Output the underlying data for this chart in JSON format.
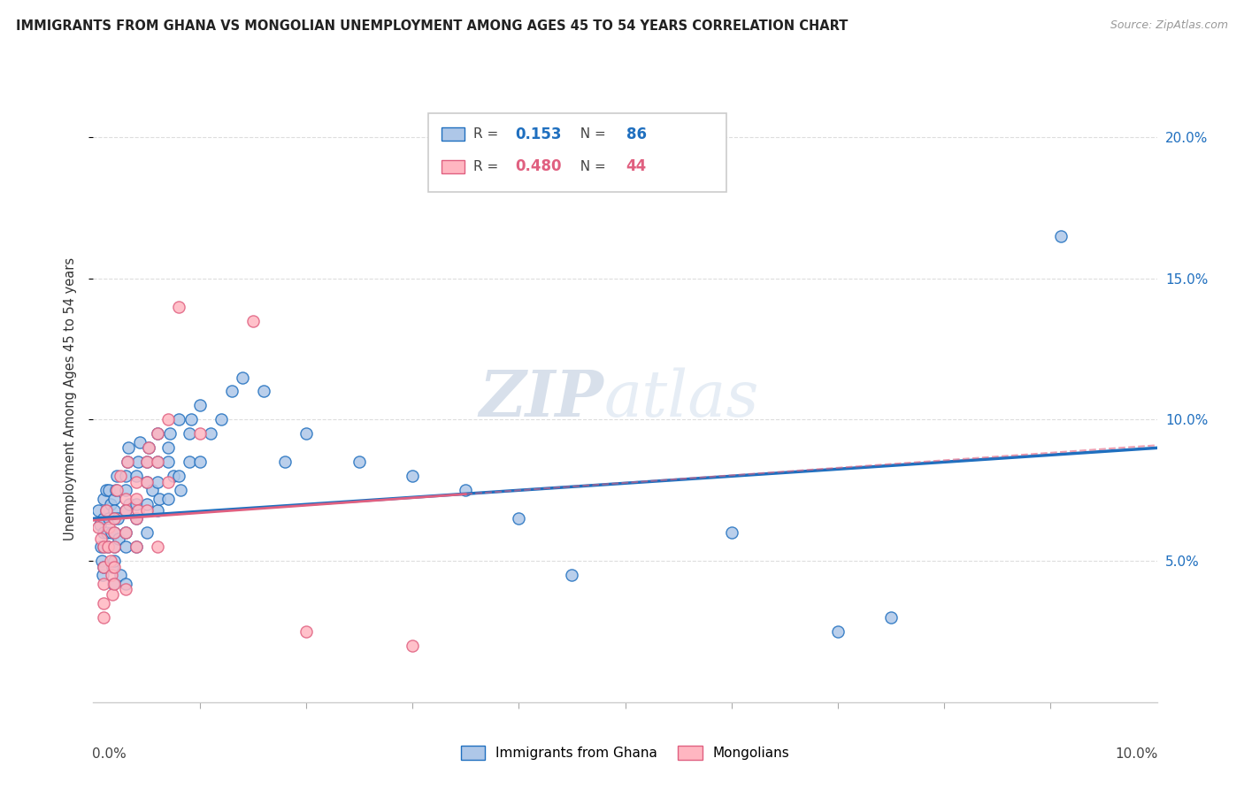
{
  "title": "IMMIGRANTS FROM GHANA VS MONGOLIAN UNEMPLOYMENT AMONG AGES 45 TO 54 YEARS CORRELATION CHART",
  "source": "Source: ZipAtlas.com",
  "ylabel": "Unemployment Among Ages 45 to 54 years",
  "legend_label1": "Immigrants from Ghana",
  "legend_label2": "Mongolians",
  "R1": "0.153",
  "N1": "86",
  "R2": "0.480",
  "N2": "44",
  "color1": "#aec7e8",
  "color2": "#ffb6c1",
  "trendline1_color": "#1f6fbf",
  "trendline2_color": "#e06080",
  "ghana_x": [
    0.0005,
    0.0006,
    0.0007,
    0.0008,
    0.0009,
    0.001,
    0.001,
    0.001,
    0.001,
    0.001,
    0.0012,
    0.0012,
    0.0013,
    0.0014,
    0.0015,
    0.0015,
    0.0016,
    0.0017,
    0.0018,
    0.0019,
    0.002,
    0.002,
    0.002,
    0.002,
    0.002,
    0.002,
    0.0021,
    0.0022,
    0.0023,
    0.0024,
    0.0025,
    0.003,
    0.003,
    0.003,
    0.003,
    0.003,
    0.003,
    0.0032,
    0.0033,
    0.0034,
    0.004,
    0.004,
    0.004,
    0.004,
    0.0042,
    0.0044,
    0.005,
    0.005,
    0.005,
    0.005,
    0.0052,
    0.0055,
    0.006,
    0.006,
    0.006,
    0.006,
    0.0062,
    0.007,
    0.007,
    0.007,
    0.0072,
    0.0075,
    0.008,
    0.008,
    0.0082,
    0.009,
    0.009,
    0.0092,
    0.01,
    0.01,
    0.011,
    0.012,
    0.013,
    0.014,
    0.016,
    0.018,
    0.02,
    0.025,
    0.03,
    0.035,
    0.04,
    0.045,
    0.06,
    0.07,
    0.075,
    0.091
  ],
  "ghana_y": [
    0.068,
    0.063,
    0.055,
    0.05,
    0.045,
    0.072,
    0.065,
    0.06,
    0.055,
    0.048,
    0.075,
    0.068,
    0.06,
    0.055,
    0.075,
    0.065,
    0.07,
    0.06,
    0.048,
    0.042,
    0.072,
    0.068,
    0.065,
    0.06,
    0.055,
    0.05,
    0.075,
    0.08,
    0.065,
    0.058,
    0.045,
    0.075,
    0.08,
    0.068,
    0.06,
    0.055,
    0.042,
    0.085,
    0.09,
    0.07,
    0.08,
    0.07,
    0.065,
    0.055,
    0.085,
    0.092,
    0.085,
    0.078,
    0.07,
    0.06,
    0.09,
    0.075,
    0.095,
    0.085,
    0.078,
    0.068,
    0.072,
    0.09,
    0.085,
    0.072,
    0.095,
    0.08,
    0.1,
    0.08,
    0.075,
    0.095,
    0.085,
    0.1,
    0.105,
    0.085,
    0.095,
    0.1,
    0.11,
    0.115,
    0.11,
    0.085,
    0.095,
    0.085,
    0.08,
    0.075,
    0.065,
    0.045,
    0.06,
    0.025,
    0.03,
    0.165
  ],
  "mongol_x": [
    0.0005,
    0.0007,
    0.001,
    0.001,
    0.001,
    0.001,
    0.001,
    0.0012,
    0.0014,
    0.0015,
    0.0016,
    0.0017,
    0.0018,
    0.002,
    0.002,
    0.002,
    0.002,
    0.002,
    0.0022,
    0.0025,
    0.003,
    0.003,
    0.003,
    0.003,
    0.0032,
    0.004,
    0.004,
    0.004,
    0.004,
    0.0042,
    0.005,
    0.005,
    0.005,
    0.0052,
    0.006,
    0.006,
    0.006,
    0.007,
    0.007,
    0.008,
    0.01,
    0.015,
    0.02,
    0.03
  ],
  "mongol_y": [
    0.062,
    0.058,
    0.055,
    0.048,
    0.042,
    0.035,
    0.03,
    0.068,
    0.055,
    0.062,
    0.05,
    0.045,
    0.038,
    0.065,
    0.06,
    0.055,
    0.048,
    0.042,
    0.075,
    0.08,
    0.072,
    0.068,
    0.06,
    0.04,
    0.085,
    0.078,
    0.072,
    0.065,
    0.055,
    0.068,
    0.085,
    0.078,
    0.068,
    0.09,
    0.095,
    0.085,
    0.055,
    0.1,
    0.078,
    0.14,
    0.095,
    0.135,
    0.025,
    0.02
  ],
  "xmin": 0.0,
  "xmax": 0.1,
  "ymin": 0.0,
  "ymax": 0.215,
  "yticks": [
    0.05,
    0.1,
    0.15,
    0.2
  ],
  "right_ytick_labels": [
    "5.0%",
    "10.0%",
    "15.0%",
    "20.0%"
  ],
  "xtick_minor": [
    0.01,
    0.02,
    0.03,
    0.04,
    0.05,
    0.06,
    0.07,
    0.08,
    0.09
  ],
  "bg_color": "#ffffff",
  "grid_color": "#dddddd",
  "watermark_color": "#cdd8ea"
}
